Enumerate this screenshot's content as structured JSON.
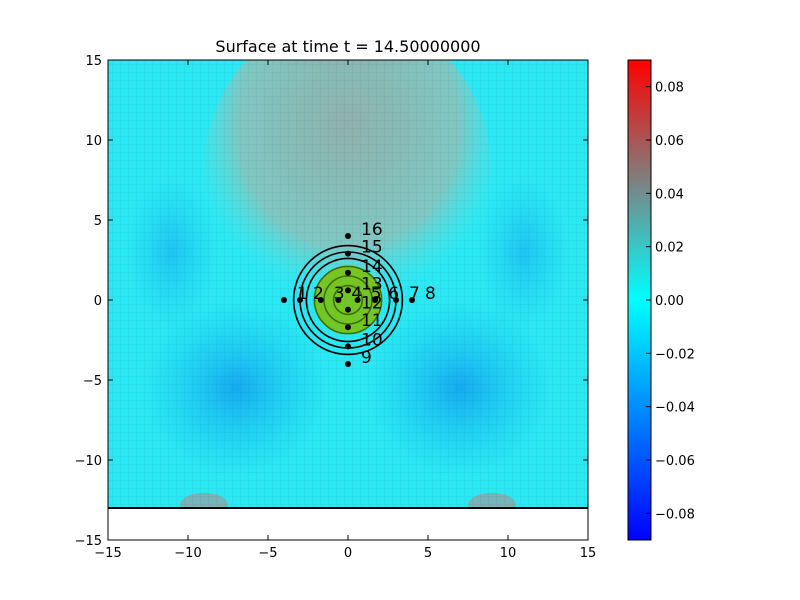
{
  "chart_data": {
    "type": "heatmap",
    "title": "Surface at time t =    14.50000000",
    "xlabel": "",
    "ylabel": "",
    "xlim": [
      -15,
      15
    ],
    "ylim": [
      -15,
      15
    ],
    "x_ticks": [
      "−15",
      "−10",
      "−5",
      "0",
      "5",
      "10",
      "15"
    ],
    "y_ticks": [
      "15",
      "10",
      "5",
      "0",
      "−5",
      "−10",
      "−15"
    ],
    "surface_bottom_y": -13,
    "colorbar": {
      "range": [
        -0.09,
        0.09
      ],
      "ticks": [
        "0.08",
        "0.06",
        "0.04",
        "0.02",
        "0.00",
        "−0.02",
        "−0.04",
        "−0.06",
        "−0.08"
      ],
      "colors": {
        "low": "#0000ff",
        "mid": "#00ffff",
        "high": "#ff0000"
      }
    },
    "contours": {
      "center": [
        0,
        0
      ],
      "radii": [
        0.9,
        1.5,
        2.1,
        2.6,
        3.0,
        3.4
      ],
      "color": "#000000",
      "fill_color": "#7fbf00"
    },
    "gauges": [
      {
        "label": "1",
        "x": -4,
        "y": 0
      },
      {
        "label": "2",
        "x": -3,
        "y": 0
      },
      {
        "label": "3",
        "x": -1.7,
        "y": 0
      },
      {
        "label": "4",
        "x": -0.6,
        "y": 0
      },
      {
        "label": "5",
        "x": 0.6,
        "y": 0
      },
      {
        "label": "6",
        "x": 1.7,
        "y": 0
      },
      {
        "label": "7",
        "x": 3,
        "y": 0
      },
      {
        "label": "8",
        "x": 4,
        "y": 0
      },
      {
        "label": "9",
        "x": 0,
        "y": -4
      },
      {
        "label": "10",
        "x": 0,
        "y": -2.9
      },
      {
        "label": "11",
        "x": 0,
        "y": -1.7
      },
      {
        "label": "12",
        "x": 0,
        "y": -0.6
      },
      {
        "label": "13",
        "x": 0,
        "y": 0.6
      },
      {
        "label": "14",
        "x": 0,
        "y": 1.7
      },
      {
        "label": "15",
        "x": 0,
        "y": 2.9
      },
      {
        "label": "16",
        "x": 0,
        "y": 4
      }
    ]
  }
}
